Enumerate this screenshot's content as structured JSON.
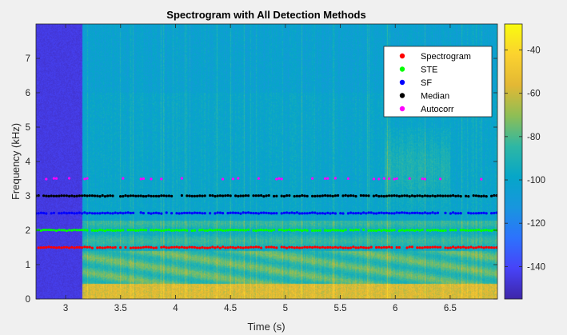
{
  "chart_data": {
    "type": "heatmap",
    "title": "Spectrogram with All Detection Methods",
    "xlabel": "Time (s)",
    "ylabel": "Frequency (kHz)",
    "xlim": [
      2.73,
      6.93
    ],
    "ylim": [
      0,
      8
    ],
    "x_ticks": [
      {
        "value": 3,
        "label": "3"
      },
      {
        "value": 3.5,
        "label": "3.5"
      },
      {
        "value": 4,
        "label": "4"
      },
      {
        "value": 4.5,
        "label": "4.5"
      },
      {
        "value": 5,
        "label": "5"
      },
      {
        "value": 5.5,
        "label": "5.5"
      },
      {
        "value": 6,
        "label": "6"
      },
      {
        "value": 6.5,
        "label": "6.5"
      }
    ],
    "y_ticks": [
      {
        "value": 0,
        "label": "0"
      },
      {
        "value": 1,
        "label": "1"
      },
      {
        "value": 2,
        "label": "2"
      },
      {
        "value": 3,
        "label": "3"
      },
      {
        "value": 4,
        "label": "4"
      },
      {
        "value": 5,
        "label": "5"
      },
      {
        "value": 6,
        "label": "6"
      },
      {
        "value": 7,
        "label": "7"
      }
    ],
    "colorbar": {
      "range": [
        -155,
        -28
      ],
      "ticks": [
        {
          "value": -40,
          "label": "-40"
        },
        {
          "value": -60,
          "label": "-60"
        },
        {
          "value": -80,
          "label": "-80"
        },
        {
          "value": -100,
          "label": "-100"
        },
        {
          "value": -120,
          "label": "-120"
        },
        {
          "value": -140,
          "label": "-140"
        }
      ],
      "colormap": [
        "#3e26a8",
        "#4743f8",
        "#2d72fd",
        "#1896de",
        "#06a6c8",
        "#2eb7a4",
        "#8ebe55",
        "#e3b834",
        "#fbd22f",
        "#f9fb0e"
      ]
    },
    "silence_region": {
      "x_end": 3.15,
      "level": -145
    },
    "legend_position": "top-right",
    "series": [
      {
        "name": "Spectrogram",
        "color": "#ff0000",
        "frequency_khz": 1.5,
        "x_start": 2.73,
        "x_end": 6.93
      },
      {
        "name": "STE",
        "color": "#00ff00",
        "frequency_khz": 2.0,
        "x_start": 2.73,
        "x_end": 6.93
      },
      {
        "name": "SF",
        "color": "#0000ff",
        "frequency_khz": 2.5,
        "x_start": 2.73,
        "x_end": 6.93
      },
      {
        "name": "Median",
        "color": "#000000",
        "frequency_khz": 3.0,
        "x_start": 2.73,
        "x_end": 6.93
      },
      {
        "name": "Autocorr",
        "color": "#ff00ff",
        "frequency_khz": 3.5,
        "x_start": 2.73,
        "x_end": 6.93
      }
    ]
  }
}
